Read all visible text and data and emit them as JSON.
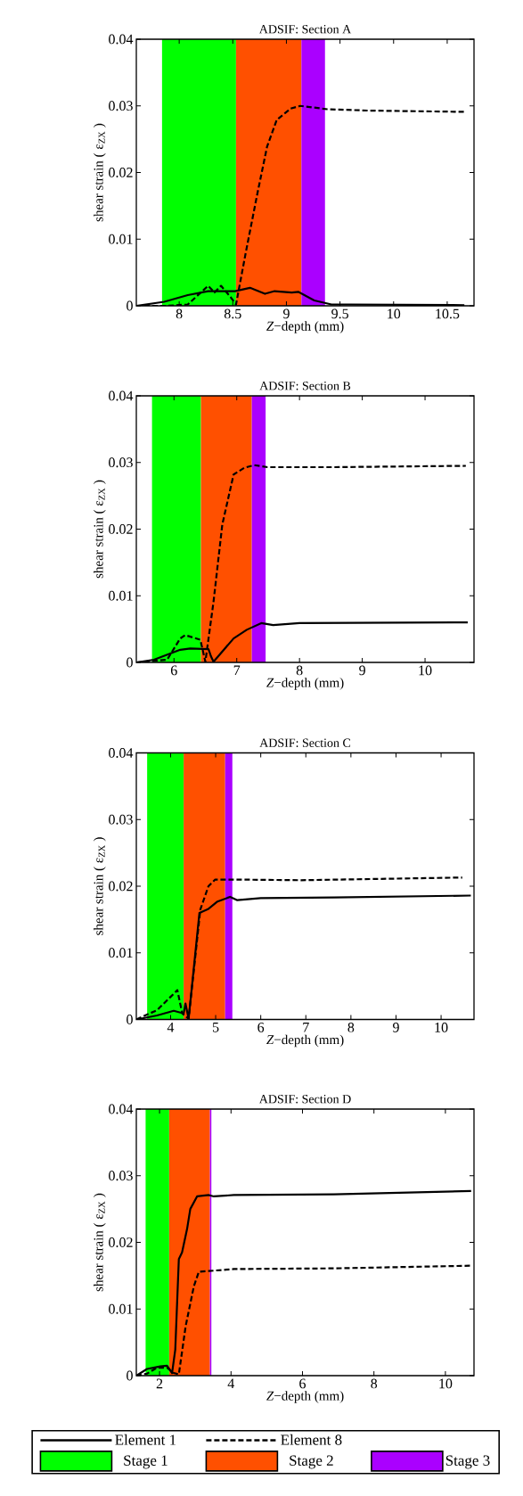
{
  "chart_data": [
    {
      "type": "line",
      "title": "ADSIF: Section A",
      "xlabel": "*Z*−depth (mm)",
      "ylabel": "shear strain ( ε$_{ZX}$ )",
      "xlim": [
        7.6,
        10.75
      ],
      "ylim": [
        0,
        0.04
      ],
      "xticks": [
        8,
        8.5,
        9,
        9.5,
        10,
        10.5
      ],
      "yticks": [
        0,
        0.01,
        0.02,
        0.03,
        0.04
      ],
      "grid": false,
      "marker": "none",
      "bands": [
        {
          "axis": "x",
          "from": 7.84,
          "to": 8.53,
          "color": "#00ff00"
        },
        {
          "axis": "x",
          "from": 8.53,
          "to": 9.14,
          "color": "#ff5000"
        },
        {
          "axis": "x",
          "from": 9.14,
          "to": 9.36,
          "color": "#aa00ff"
        }
      ],
      "series": [
        {
          "color": "#000000",
          "line_style": "solid",
          "x": [
            7.6,
            7.86,
            8.08,
            8.27,
            8.52,
            8.66,
            8.8,
            8.89,
            9.05,
            9.11,
            9.26,
            9.42,
            9.6,
            10.66
          ],
          "values": [
            0,
            0.0006,
            0.0016,
            0.0022,
            0.0022,
            0.0027,
            0.0018,
            0.0022,
            0.002,
            0.0021,
            0.0008,
            0.0002,
            0.0002,
            0.0001
          ]
        },
        {
          "color": "#000000",
          "line_style": "dashed",
          "x": [
            7.6,
            7.89,
            8.08,
            8.27,
            8.33,
            8.39,
            8.48,
            8.53,
            8.62,
            8.73,
            8.82,
            8.91,
            9.04,
            9.13,
            9.38,
            9.75,
            10.66
          ],
          "values": [
            0,
            0,
            0.0002,
            0.003,
            0.002,
            0.003,
            0.0013,
            0.0002,
            0.0079,
            0.0169,
            0.0239,
            0.0279,
            0.0296,
            0.03,
            0.0295,
            0.0293,
            0.0291
          ]
        }
      ]
    },
    {
      "type": "line",
      "title": "ADSIF: Section B",
      "xlabel": "*Z*−depth (mm)",
      "ylabel": "shear strain ( ε$_{ZX}$ )",
      "xlim": [
        5.4,
        10.78
      ],
      "ylim": [
        0,
        0.04
      ],
      "xticks": [
        6,
        7,
        8,
        9,
        10
      ],
      "yticks": [
        0,
        0.01,
        0.02,
        0.03,
        0.04
      ],
      "grid": false,
      "marker": "none",
      "bands": [
        {
          "axis": "x",
          "from": 5.65,
          "to": 6.43,
          "color": "#00ff00"
        },
        {
          "axis": "x",
          "from": 6.43,
          "to": 7.24,
          "color": "#ff5000"
        },
        {
          "axis": "x",
          "from": 7.24,
          "to": 7.46,
          "color": "#aa00ff"
        }
      ],
      "series": [
        {
          "color": "#000000",
          "line_style": "solid",
          "x": [
            5.4,
            5.68,
            6.1,
            6.26,
            6.55,
            6.59,
            6.63,
            6.95,
            7.16,
            7.39,
            7.58,
            8.0,
            10.68
          ],
          "values": [
            0,
            0.0004,
            0.0019,
            0.0021,
            0.002,
            0.0009,
            0.0001,
            0.0036,
            0.0049,
            0.0059,
            0.0056,
            0.0059,
            0.006
          ]
        },
        {
          "color": "#000000",
          "line_style": "dashed",
          "x": [
            5.4,
            5.89,
            6.1,
            6.18,
            6.42,
            6.5,
            6.63,
            6.77,
            6.95,
            7.12,
            7.28,
            7.49,
            8.55,
            10.65
          ],
          "values": [
            0,
            0.0004,
            0.0036,
            0.0041,
            0.0034,
            0.0001,
            0.0091,
            0.0207,
            0.0282,
            0.0292,
            0.0296,
            0.0293,
            0.0293,
            0.0295
          ]
        }
      ]
    },
    {
      "type": "line",
      "title": "ADSIF: Section C",
      "xlabel": "*Z*−depth (mm)",
      "ylabel": "shear strain ( ε$_{ZX}$ )",
      "xlim": [
        3.24,
        10.73
      ],
      "ylim": [
        0,
        0.04
      ],
      "xticks": [
        4,
        5,
        6,
        7,
        8,
        9,
        10
      ],
      "yticks": [
        0,
        0.01,
        0.02,
        0.03,
        0.04
      ],
      "grid": false,
      "marker": "none",
      "bands": [
        {
          "axis": "x",
          "from": 3.48,
          "to": 4.29,
          "color": "#00ff00"
        },
        {
          "axis": "x",
          "from": 4.29,
          "to": 5.21,
          "color": "#ff5000"
        },
        {
          "axis": "x",
          "from": 5.21,
          "to": 5.37,
          "color": "#aa00ff"
        }
      ],
      "series": [
        {
          "color": "#000000",
          "line_style": "solid",
          "x": [
            3.24,
            3.7,
            4.07,
            4.29,
            4.33,
            4.4,
            4.64,
            4.84,
            5.04,
            5.32,
            5.48,
            6.0,
            7.63,
            10.66
          ],
          "values": [
            0,
            0.0006,
            0.0013,
            0.0009,
            0.0024,
            0.0001,
            0.016,
            0.0166,
            0.0177,
            0.0184,
            0.0179,
            0.0182,
            0.0183,
            0.0186
          ]
        },
        {
          "color": "#000000",
          "line_style": "dashed",
          "x": [
            3.24,
            3.7,
            4.0,
            4.15,
            4.26,
            4.4,
            4.66,
            4.84,
            4.99,
            5.4,
            6.88,
            10.47
          ],
          "values": [
            0,
            0.0014,
            0.0034,
            0.0044,
            0.0009,
            0.0001,
            0.0165,
            0.02,
            0.021,
            0.021,
            0.0209,
            0.0213
          ]
        }
      ]
    },
    {
      "type": "line",
      "title": "ADSIF: Section D",
      "xlabel": "*Z*−depth (mm)",
      "ylabel": "shear strain ( ε$_{ZX}$ )",
      "xlim": [
        1.35,
        10.8
      ],
      "ylim": [
        0,
        0.04
      ],
      "xticks": [
        2,
        4,
        6,
        8,
        10
      ],
      "yticks": [
        0,
        0.01,
        0.02,
        0.03,
        0.04
      ],
      "grid": false,
      "legend": "bottom",
      "marker": "none",
      "bands": [
        {
          "axis": "x",
          "from": 1.61,
          "to": 2.27,
          "label": "Stage 1",
          "color": "#00ff00"
        },
        {
          "axis": "x",
          "from": 2.27,
          "to": 3.41,
          "label": "Stage 2",
          "color": "#ff5000"
        },
        {
          "axis": "x",
          "from": 3.41,
          "to": 3.45,
          "label": "Stage 3",
          "color": "#aa00ff"
        }
      ],
      "series": [
        {
          "name": "Element 1",
          "color": "#000000",
          "line_style": "solid",
          "x": [
            1.35,
            1.65,
            2.02,
            2.21,
            2.35,
            2.44,
            2.54,
            2.63,
            2.77,
            2.86,
            3.05,
            3.38,
            3.52,
            4.08,
            6.88,
            10.72
          ],
          "values": [
            0,
            0.001,
            0.0014,
            0.0015,
            0.0004,
            0.0039,
            0.0175,
            0.0185,
            0.022,
            0.025,
            0.0269,
            0.0271,
            0.0269,
            0.0271,
            0.0272,
            0.0277
          ]
        },
        {
          "name": "Element 8",
          "color": "#000000",
          "line_style": "dashed",
          "x": [
            1.35,
            1.65,
            1.93,
            2.21,
            2.4,
            2.54,
            2.73,
            2.96,
            3.1,
            3.38,
            4.08,
            6.88,
            10.72
          ],
          "values": [
            0,
            0.0003,
            0.0012,
            0.0012,
            0.0004,
            0.0002,
            0.0074,
            0.0134,
            0.0156,
            0.0157,
            0.016,
            0.0161,
            0.0165
          ]
        }
      ]
    }
  ]
}
